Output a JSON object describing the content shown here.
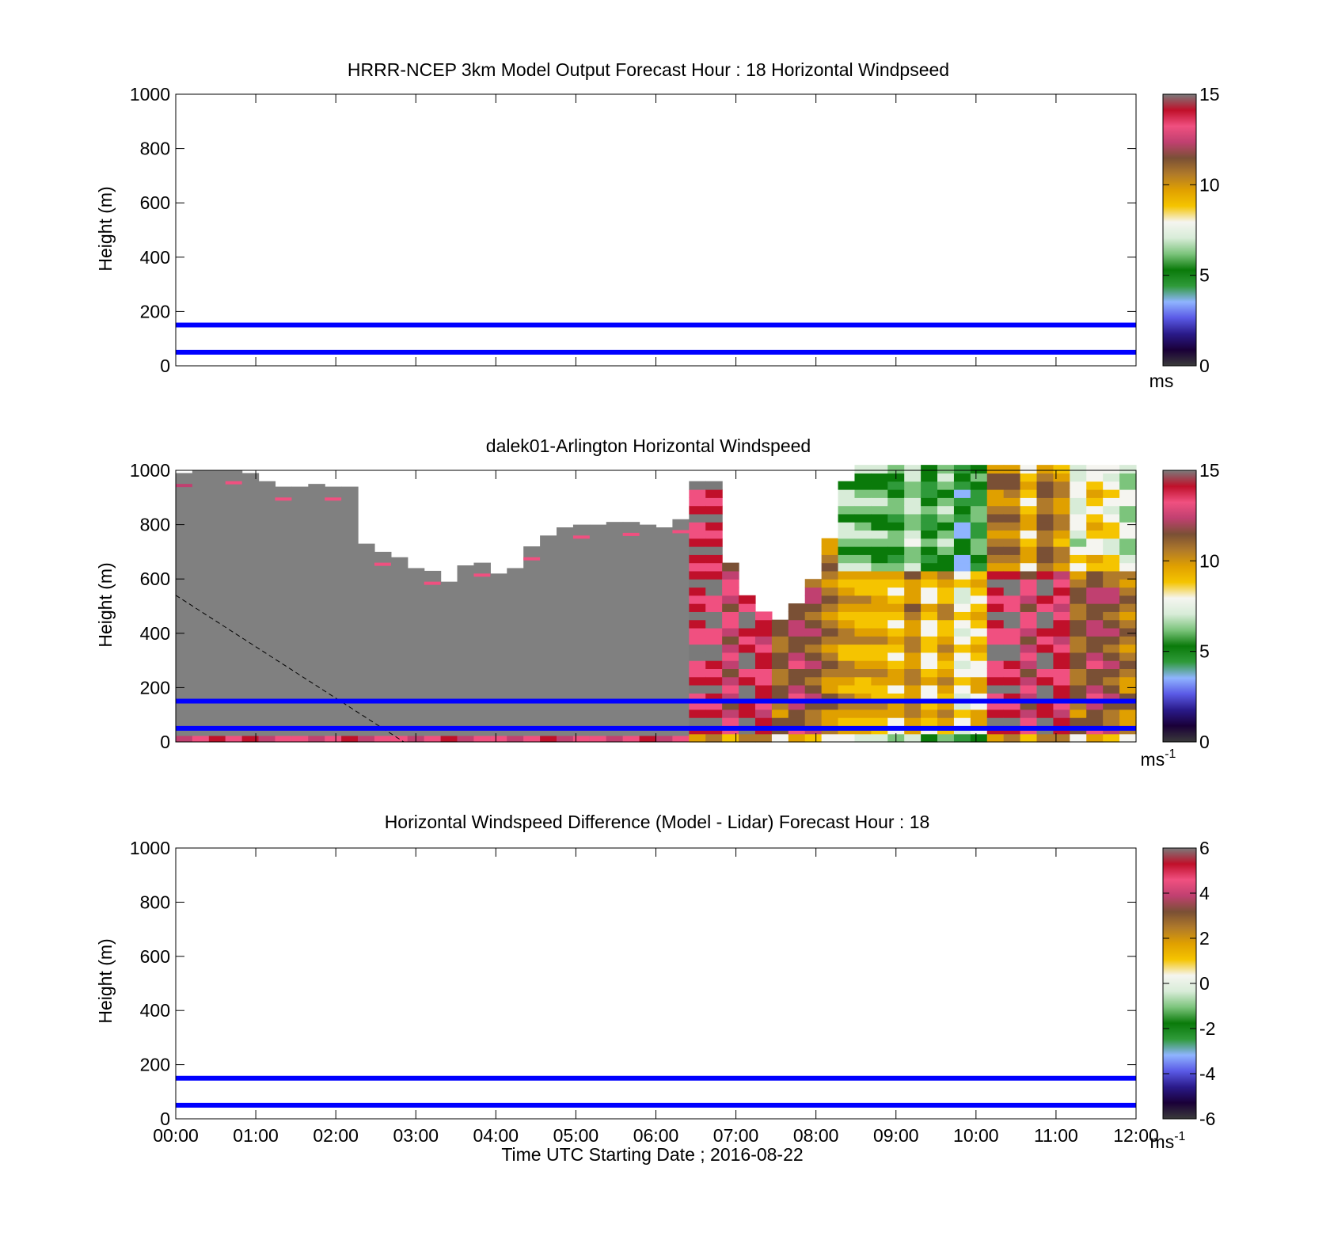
{
  "xlabel": "Time UTC  Starting Date ; 2016-08-22",
  "time_ticks": [
    "00:00",
    "01:00",
    "02:00",
    "03:00",
    "04:00",
    "05:00",
    "06:00",
    "07:00",
    "08:00",
    "09:00",
    "10:00",
    "11:00",
    "12:00"
  ],
  "colormap": [
    "#3a3a3a",
    "#1a0038",
    "#2a1a8a",
    "#5a5ae6",
    "#8fb4ff",
    "#2f9a3a",
    "#0a7a0a",
    "#7cc47c",
    "#d8ecd8",
    "#f5f5f0",
    "#f5c400",
    "#e0a000",
    "#b07a2a",
    "#7a5035",
    "#c04070",
    "#f05080",
    "#c0102a",
    "#7a7a7a"
  ],
  "chart_data": [
    {
      "type": "heatmap",
      "title": "HRRR-NCEP 3km Model Output   Forecast Hour : 18 Horizontal Windpseed",
      "ylabel": "Height (m)",
      "xlim": [
        "00:00",
        "12:00"
      ],
      "ylim": [
        0,
        1000
      ],
      "y_ticks": [
        "0",
        "200",
        "400",
        "600",
        "800",
        "1000"
      ],
      "reference_lines_m": [
        50,
        150
      ],
      "colorbar": {
        "range": [
          0,
          15
        ],
        "ticks": [
          "0",
          "5",
          "10",
          "15"
        ],
        "unit": "ms"
      },
      "cells": []
    },
    {
      "type": "heatmap",
      "title": "dalek01-Arlington  Horizontal Windspeed",
      "ylabel": "Height (m)",
      "xlim": [
        "00:00",
        "12:00"
      ],
      "ylim": [
        0,
        1000
      ],
      "y_ticks": [
        "0",
        "200",
        "400",
        "600",
        "800",
        "1000"
      ],
      "reference_lines_m": [
        50,
        150
      ],
      "colorbar": {
        "range": [
          0,
          15
        ],
        "ticks": [
          "0",
          "5",
          "10",
          "15"
        ],
        "unit": "ms",
        "unit_exp": "-1"
      },
      "coverage_top_m": [
        990,
        1000,
        1000,
        1000,
        990,
        960,
        940,
        940,
        950,
        940,
        940,
        730,
        700,
        680,
        640,
        630,
        590,
        650,
        660,
        620,
        640,
        720,
        760,
        790,
        800,
        800,
        810,
        810,
        800,
        790,
        820,
        940,
        950,
        650,
        520,
        470,
        450,
        500,
        590,
        740,
        950,
        1000,
        1000,
        1000,
        1000,
        1000,
        1000,
        1000,
        1000,
        1000,
        1000,
        1000,
        1000,
        1000,
        1000,
        1000,
        1000,
        1000
      ],
      "low_fill_ws": [
        12.5,
        13,
        14,
        13.5,
        14,
        12.5,
        13,
        13.5,
        12.5,
        13,
        14,
        12.5,
        13,
        13.5,
        12.5,
        13,
        14,
        12.5,
        13,
        13.5,
        12.5,
        13,
        14,
        12.5,
        13,
        13.5,
        12.5,
        13,
        14,
        12.5,
        13,
        13.5,
        12.5,
        13,
        14,
        12.5,
        13,
        13.5,
        12.5,
        13
      ],
      "regime_ws": [
        14,
        14.2,
        12.5,
        14.5,
        13.5,
        11,
        12,
        11.5,
        10.5,
        9.8,
        9.5,
        9.3,
        9.0,
        10.2,
        8.5,
        9.6,
        7.8,
        8.8
      ],
      "dashed_line": {
        "start": {
          "time": "00:00",
          "height_m": 540
        },
        "end": {
          "time": "02:51",
          "height_m": 0
        }
      }
    },
    {
      "type": "heatmap",
      "title": "Horizontal Windspeed Difference (Model - Lidar) Forecast Hour : 18",
      "ylabel": "Height (m)",
      "xlim": [
        "00:00",
        "12:00"
      ],
      "ylim": [
        0,
        1000
      ],
      "y_ticks": [
        "0",
        "200",
        "400",
        "600",
        "800",
        "1000"
      ],
      "reference_lines_m": [
        50,
        150
      ],
      "colorbar": {
        "range": [
          -6,
          6
        ],
        "ticks": [
          "-6",
          "-4",
          "-2",
          "0",
          "2",
          "4",
          "6"
        ],
        "unit": "ms",
        "unit_exp": "-1"
      },
      "cells": []
    }
  ]
}
